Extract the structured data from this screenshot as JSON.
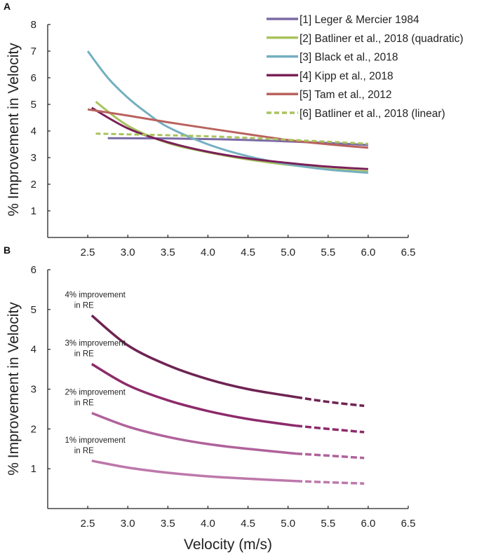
{
  "chart_data": [
    {
      "panel": "A",
      "type": "line",
      "title": "",
      "xlabel": "",
      "ylabel": "% Improvement in Velocity",
      "xlim": [
        2.0,
        6.5
      ],
      "ylim": [
        0,
        8
      ],
      "xticks": [
        "2.5",
        "3.0",
        "3.5",
        "4.0",
        "4.5",
        "5.0",
        "5.5",
        "6.0",
        "6.5"
      ],
      "yticks": [
        "1",
        "2",
        "3",
        "4",
        "5",
        "6",
        "7",
        "8"
      ],
      "legend_position": "top-right",
      "series": [
        {
          "name": "[1] Leger & Mercier 1984",
          "color": "#7b6aa6",
          "dashed": false,
          "points": [
            [
              2.75,
              3.73
            ],
            [
              3.5,
              3.72
            ],
            [
              4.5,
              3.66
            ],
            [
              5.5,
              3.55
            ],
            [
              6.0,
              3.47
            ]
          ]
        },
        {
          "name": "[2] Batliner et al., 2018 (quadratic)",
          "color": "#a9c35e",
          "dashed": false,
          "points": [
            [
              2.6,
              5.1
            ],
            [
              3.0,
              4.2
            ],
            [
              3.5,
              3.55
            ],
            [
              4.0,
              3.2
            ],
            [
              4.5,
              2.93
            ],
            [
              5.0,
              2.73
            ],
            [
              5.5,
              2.58
            ],
            [
              6.0,
              2.48
            ]
          ]
        },
        {
          "name": "[3] Black et al., 2018",
          "color": "#74afc1",
          "dashed": false,
          "points": [
            [
              2.5,
              7.0
            ],
            [
              2.75,
              6.0
            ],
            [
              3.0,
              5.25
            ],
            [
              3.25,
              4.65
            ],
            [
              3.5,
              4.15
            ],
            [
              4.0,
              3.5
            ],
            [
              4.5,
              3.05
            ],
            [
              5.0,
              2.75
            ],
            [
              5.5,
              2.55
            ],
            [
              6.0,
              2.43
            ]
          ]
        },
        {
          "name": "[4] Kipp et al., 2018",
          "color": "#7a2058",
          "dashed": false,
          "points": [
            [
              2.55,
              4.87
            ],
            [
              3.0,
              4.1
            ],
            [
              3.5,
              3.58
            ],
            [
              4.0,
              3.22
            ],
            [
              4.5,
              2.97
            ],
            [
              5.0,
              2.8
            ],
            [
              5.5,
              2.66
            ],
            [
              6.0,
              2.57
            ]
          ]
        },
        {
          "name": "[5] Tam et al., 2012",
          "color": "#b9625e",
          "dashed": false,
          "points": [
            [
              2.5,
              4.81
            ],
            [
              3.0,
              4.58
            ],
            [
              3.5,
              4.33
            ],
            [
              4.0,
              4.1
            ],
            [
              4.5,
              3.88
            ],
            [
              5.0,
              3.66
            ],
            [
              5.5,
              3.5
            ],
            [
              6.0,
              3.37
            ]
          ]
        },
        {
          "name": "[6] Batliner et al., 2018 (linear)",
          "color": "#a9c35e",
          "dashed": true,
          "points": [
            [
              2.6,
              3.9
            ],
            [
              4.0,
              3.8
            ],
            [
              5.0,
              3.67
            ],
            [
              6.0,
              3.52
            ]
          ]
        }
      ]
    },
    {
      "panel": "B",
      "type": "line",
      "title": "",
      "xlabel": "Velocity (m/s)",
      "ylabel": "% Improvement in Velocity",
      "xlim": [
        2.0,
        6.5
      ],
      "ylim": [
        0,
        6
      ],
      "xticks": [
        "2.5",
        "3.0",
        "3.5",
        "4.0",
        "4.5",
        "5.0",
        "5.5",
        "6.0",
        "6.5"
      ],
      "yticks": [
        "1",
        "2",
        "3",
        "4",
        "5",
        "6"
      ],
      "series": [
        {
          "name": "4% improvement in RE",
          "line1": "4% improvement",
          "line2": "in RE",
          "color": "#6e2352",
          "points": [
            [
              2.55,
              4.85
            ],
            [
              3.0,
              4.1
            ],
            [
              3.5,
              3.6
            ],
            [
              4.0,
              3.25
            ],
            [
              4.5,
              3.0
            ],
            [
              5.1,
              2.8
            ]
          ],
          "dashed_points": [
            [
              5.1,
              2.8
            ],
            [
              5.5,
              2.68
            ],
            [
              5.95,
              2.58
            ]
          ]
        },
        {
          "name": "3% improvement in RE",
          "line1": "3% improvement",
          "line2": "in RE",
          "color": "#8d2b6b",
          "points": [
            [
              2.55,
              3.63
            ],
            [
              3.0,
              3.1
            ],
            [
              3.5,
              2.72
            ],
            [
              4.0,
              2.45
            ],
            [
              4.5,
              2.25
            ],
            [
              5.1,
              2.08
            ]
          ],
          "dashed_points": [
            [
              5.1,
              2.08
            ],
            [
              5.5,
              2.0
            ],
            [
              5.95,
              1.92
            ]
          ]
        },
        {
          "name": "2% improvement in RE",
          "line1": "2% improvement",
          "line2": "in RE",
          "color": "#b0629b",
          "points": [
            [
              2.55,
              2.4
            ],
            [
              3.0,
              2.06
            ],
            [
              3.5,
              1.8
            ],
            [
              4.0,
              1.62
            ],
            [
              4.5,
              1.5
            ],
            [
              5.1,
              1.38
            ]
          ],
          "dashed_points": [
            [
              5.1,
              1.38
            ],
            [
              5.5,
              1.33
            ],
            [
              5.95,
              1.27
            ]
          ]
        },
        {
          "name": "1% improvement in RE",
          "line1": "1% improvement",
          "line2": "in RE",
          "color": "#bd78aa",
          "points": [
            [
              2.55,
              1.2
            ],
            [
              3.0,
              1.03
            ],
            [
              3.5,
              0.9
            ],
            [
              4.0,
              0.81
            ],
            [
              4.5,
              0.75
            ],
            [
              5.1,
              0.69
            ]
          ],
          "dashed_points": [
            [
              5.1,
              0.69
            ],
            [
              5.5,
              0.66
            ],
            [
              5.95,
              0.63
            ]
          ]
        }
      ]
    }
  ]
}
